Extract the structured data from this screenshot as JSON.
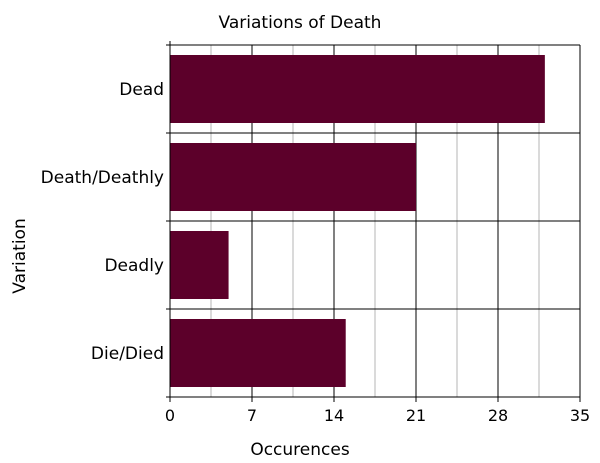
{
  "chart_data": {
    "type": "bar",
    "orientation": "horizontal",
    "title": "Variations of Death",
    "xlabel": "Occurences",
    "ylabel": "Variation",
    "categories": [
      "Dead",
      "Death/Deathly",
      "Deadly",
      "Die/Died"
    ],
    "values": [
      32,
      21,
      5,
      15
    ],
    "xlim": [
      0,
      35
    ],
    "xticks": [
      0,
      7,
      14,
      21,
      28,
      35
    ],
    "minor_gridlines": true,
    "grid": true,
    "legend": "none",
    "bar_color": "#5c002a",
    "major_grid_color": "#000000",
    "minor_grid_color": "#b4b4b4"
  }
}
